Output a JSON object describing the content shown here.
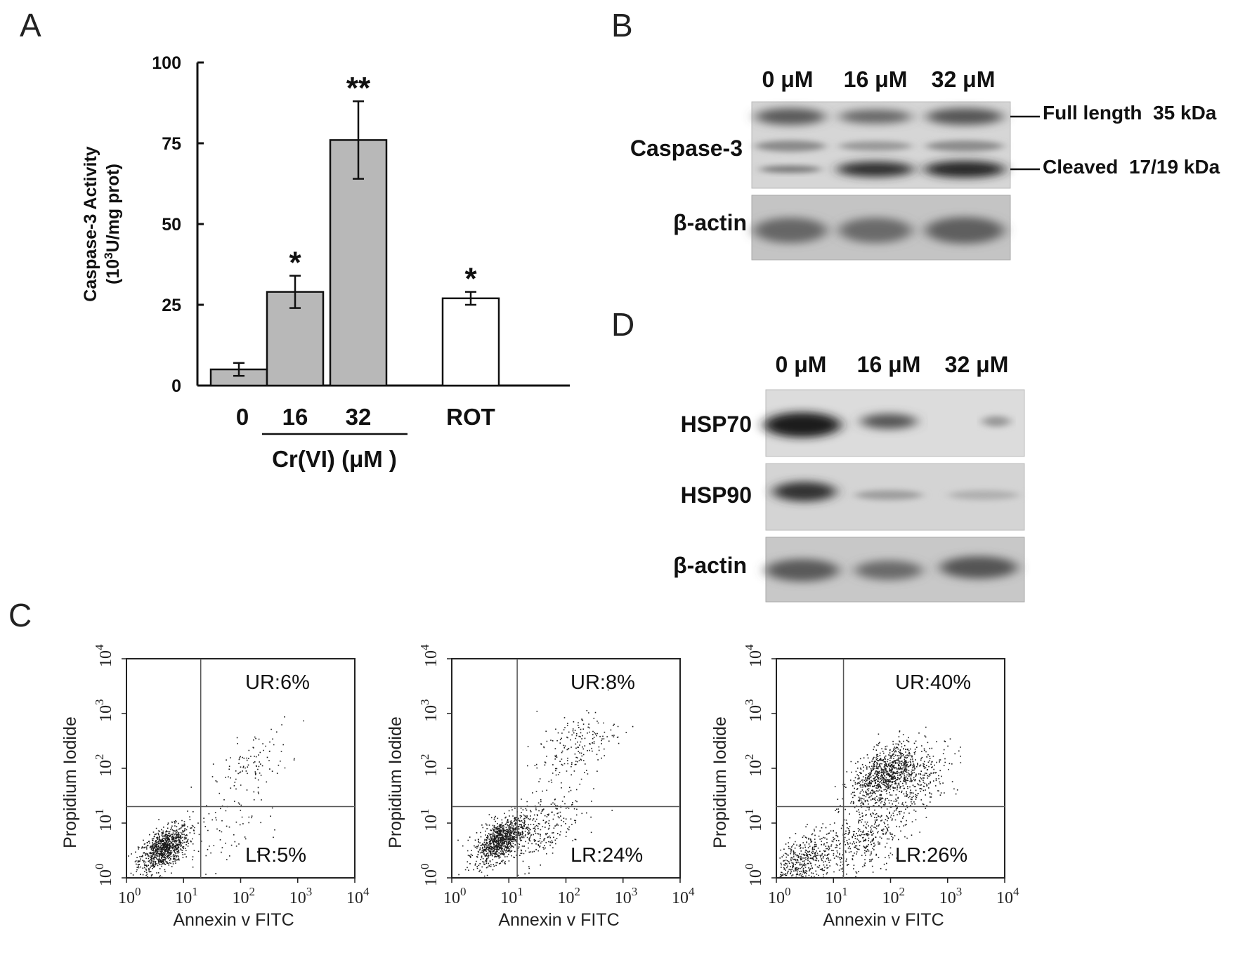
{
  "panels": {
    "a": {
      "letter": "A"
    },
    "b": {
      "letter": "B"
    },
    "c": {
      "letter": "C"
    },
    "d": {
      "letter": "D"
    }
  },
  "chart_data": [
    {
      "type": "bar",
      "categories": [
        "0",
        "16",
        "32",
        "ROT"
      ],
      "values": [
        5,
        29,
        76,
        27
      ],
      "errors": [
        2,
        5,
        12,
        2
      ],
      "significance": [
        "",
        "*",
        "**",
        "*"
      ],
      "bar_colors": [
        "#b8b8b8",
        "#b8b8b8",
        "#b8b8b8",
        "#ffffff"
      ],
      "ylabel_line1": "Caspase-3 Activity",
      "ylabel_line2_prefix": "(10",
      "ylabel_line2_sup": "3",
      "ylabel_line2_suffix": "U/mg prot)",
      "group_label": "Cr(VI) (μM )",
      "yticks": [
        "0",
        "25",
        "50",
        "75",
        "100"
      ],
      "ylim": [
        0,
        100
      ]
    },
    {
      "type": "scatter",
      "subtype": "flow-cytometry",
      "xlabel": "Annexin v FITC",
      "ylabel": "Propidium Iodide",
      "scale": "log",
      "xlim": [
        1,
        10000
      ],
      "ylim": [
        1,
        10000
      ],
      "tick_base": "10",
      "tick_exponents": [
        "0",
        "1",
        "2",
        "3",
        "4"
      ],
      "plots": [
        {
          "ur": "UR:6%",
          "lr": "LR:5%",
          "gate_x": 20,
          "gate_y": 20,
          "clusters": [
            {
              "cx": 4.5,
              "cy": 3.5,
              "spread": 0.22,
              "n": 900
            },
            {
              "cx": 150,
              "cy": 120,
              "spread": 0.35,
              "n": 110
            },
            {
              "cx": 60,
              "cy": 6,
              "spread": 0.45,
              "n": 70
            }
          ]
        },
        {
          "ur": "UR:8%",
          "lr": "LR:24%",
          "gate_x": 14,
          "gate_y": 20,
          "clusters": [
            {
              "cx": 7,
              "cy": 5,
              "spread": 0.22,
              "n": 900
            },
            {
              "cx": 150,
              "cy": 250,
              "spread": 0.35,
              "n": 190
            },
            {
              "cx": 30,
              "cy": 8,
              "spread": 0.4,
              "n": 300
            }
          ]
        },
        {
          "ur": "UR:40%",
          "lr": "LR:26%",
          "gate_x": 15,
          "gate_y": 20,
          "clusters": [
            {
              "cx": 80,
              "cy": 80,
              "spread": 0.3,
              "n": 900
            },
            {
              "cx": 3,
              "cy": 2,
              "spread": 0.3,
              "n": 500
            },
            {
              "cx": 35,
              "cy": 5,
              "spread": 0.35,
              "n": 350
            },
            {
              "cx": 300,
              "cy": 60,
              "spread": 0.35,
              "n": 260
            }
          ]
        }
      ]
    }
  ],
  "blot_b": {
    "lanes": [
      "0 μM",
      "16 μM",
      "32 μM"
    ],
    "rows": [
      "Caspase-3",
      "β-actin"
    ],
    "band_labels": [
      "Full length  35 kDa",
      "Cleaved  17/19 kDa"
    ]
  },
  "blot_d": {
    "lanes": [
      "0 μM",
      "16 μM",
      "32 μM"
    ],
    "rows": [
      "HSP70",
      "HSP90",
      "β-actin"
    ]
  }
}
